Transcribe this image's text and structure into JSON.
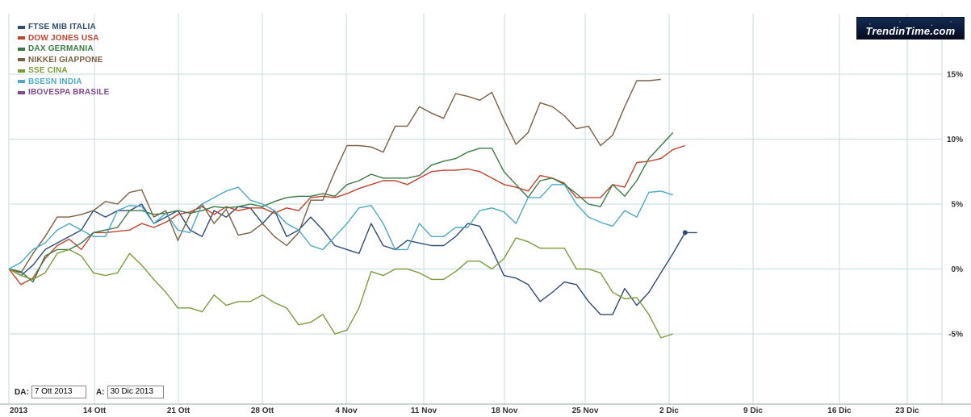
{
  "chart_data": {
    "type": "line",
    "title": "",
    "xlabel": "",
    "ylabel": "",
    "x_ticks": [
      "2013",
      "14 Ott",
      "21 Ott",
      "28 Ott",
      "4 Nov",
      "11 Nov",
      "18 Nov",
      "25 Nov",
      "2 Dic",
      "9 Dic",
      "16 Dic",
      "23 Dic"
    ],
    "y_ticks": [
      "15%",
      "10%",
      "5%",
      "0%",
      "-5%"
    ],
    "ylim": [
      -9.5,
      19.5
    ],
    "xlim": [
      0,
      59
    ],
    "grid": true,
    "legend": "top-left",
    "series": [
      {
        "name": "FTSE MIB ITALIA",
        "color": "#2e4b74",
        "values": [
          0,
          -0.5,
          0.3,
          1.5,
          2.0,
          2.5,
          3.0,
          4.5,
          4.0,
          4.5,
          4.5,
          5.0,
          3.5,
          4.0,
          4.5,
          3.0,
          2.5,
          4.5,
          4.0,
          4.8,
          4.7,
          3.5,
          4.5,
          2.5,
          3.0,
          4.0,
          3.0,
          1.8,
          1.5,
          1.2,
          3.5,
          1.8,
          1.5,
          2.2,
          2.0,
          1.8,
          1.8,
          2.5,
          3.5,
          3.3,
          1.5,
          -0.5,
          -0.7,
          -1.2,
          -2.5,
          -1.8,
          -1.0,
          -1.2,
          -2.5,
          -3.5,
          -3.5,
          -1.5,
          -2.8,
          -1.8,
          -0.3,
          1.2,
          2.8,
          2.8
        ]
      },
      {
        "name": "DOW JONES USA",
        "color": "#c0432e",
        "values": [
          0,
          -1.2,
          -0.7,
          0.8,
          1.8,
          2.3,
          1.5,
          2.8,
          2.8,
          2.9,
          3.0,
          3.5,
          3.2,
          3.6,
          4.2,
          4.4,
          4.8,
          4.2,
          4.8,
          4.5,
          4.7,
          4.7,
          4.3,
          4.7,
          4.5,
          5.5,
          5.6,
          5.5,
          5.8,
          6.2,
          6.5,
          6.8,
          6.8,
          6.5,
          7.0,
          7.5,
          7.6,
          7.6,
          7.7,
          7.5,
          7.0,
          6.5,
          6.3,
          6.0,
          7.2,
          7.0,
          6.6,
          5.5,
          5.5,
          5.5,
          6.5,
          6.3,
          8.2,
          8.3,
          8.5,
          9.2,
          9.5
        ]
      },
      {
        "name": "DAX GERMANIA",
        "color": "#3a7a44",
        "values": [
          0,
          -0.2,
          -1.0,
          1.0,
          1.5,
          1.5,
          2.0,
          2.8,
          3.0,
          3.2,
          4.5,
          4.5,
          4.2,
          4.3,
          4.5,
          4.3,
          4.5,
          4.8,
          4.7,
          4.8,
          5.0,
          4.8,
          5.2,
          5.5,
          5.6,
          5.6,
          5.8,
          5.6,
          6.5,
          6.8,
          7.3,
          7.0,
          7.0,
          7.0,
          7.2,
          8.0,
          8.3,
          8.5,
          9.0,
          9.3,
          9.3,
          7.5,
          6.5,
          5.5,
          6.8,
          7.0,
          6.5,
          5.8,
          5.0,
          4.8,
          6.5,
          5.6,
          6.8,
          8.5,
          9.5,
          10.5
        ]
      },
      {
        "name": "NIKKEI GIAPPONE",
        "color": "#7a6040",
        "values": [
          0,
          -0.3,
          1.2,
          2.5,
          4.0,
          4.0,
          4.2,
          4.5,
          5.2,
          5.0,
          5.9,
          6.1,
          4.0,
          4.5,
          2.2,
          4.2,
          5.0,
          3.5,
          4.6,
          2.6,
          2.8,
          3.5,
          2.5,
          1.8,
          2.8,
          5.3,
          5.3,
          7.5,
          9.5,
          9.5,
          9.4,
          9.0,
          11.0,
          11.0,
          12.5,
          12.0,
          11.6,
          13.5,
          13.3,
          13.0,
          13.6,
          11.5,
          9.6,
          10.5,
          12.8,
          12.5,
          11.8,
          10.8,
          11.0,
          9.5,
          10.3,
          12.5,
          14.5,
          14.5,
          14.6
        ]
      },
      {
        "name": "SSE CINA",
        "color": "#7a9c3a",
        "values": [
          0,
          -0.5,
          -0.8,
          -0.3,
          1.2,
          1.5,
          1.0,
          -0.3,
          -0.5,
          -0.3,
          1.2,
          0.3,
          -0.8,
          -1.8,
          -3.0,
          -3.0,
          -3.3,
          -2.0,
          -2.8,
          -2.5,
          -2.5,
          -2.0,
          -2.6,
          -3.0,
          -4.3,
          -4.1,
          -3.5,
          -5.0,
          -4.7,
          -3.0,
          -0.2,
          -0.5,
          0.0,
          0.0,
          -0.3,
          -0.8,
          -0.8,
          -0.2,
          0.6,
          0.6,
          0.0,
          0.8,
          2.4,
          2.1,
          1.6,
          1.6,
          1.6,
          0.0,
          0.0,
          -0.3,
          -1.8,
          -2.3,
          -2.2,
          -3.5,
          -5.3,
          -5.0
        ]
      },
      {
        "name": "BSESN INDIA",
        "color": "#4aaac2",
        "values": [
          0,
          0.5,
          1.5,
          2.0,
          3.0,
          3.5,
          3.0,
          2.5,
          2.5,
          4.5,
          4.9,
          4.8,
          3.5,
          4.3,
          3.0,
          2.8,
          5.0,
          5.5,
          6.0,
          6.3,
          5.3,
          5.0,
          4.5,
          3.5,
          3.0,
          1.8,
          1.5,
          2.5,
          3.5,
          4.7,
          4.9,
          3.5,
          1.5,
          1.5,
          3.5,
          2.5,
          2.5,
          3.2,
          3.2,
          4.5,
          4.7,
          4.4,
          3.5,
          5.5,
          5.5,
          6.5,
          6.5,
          5.0,
          4.0,
          3.6,
          3.3,
          4.5,
          4.0,
          5.9,
          6.0,
          5.7
        ]
      },
      {
        "name": "IBOVESPA BRASILE",
        "color": "#7a4a8c",
        "values": []
      }
    ]
  },
  "range": {
    "from_label": "DA:",
    "from_value": "7 Ott 2013",
    "to_label": "A:",
    "to_value": "30 Dic 2013"
  },
  "logo": {
    "text": "TrendinTime.com"
  }
}
